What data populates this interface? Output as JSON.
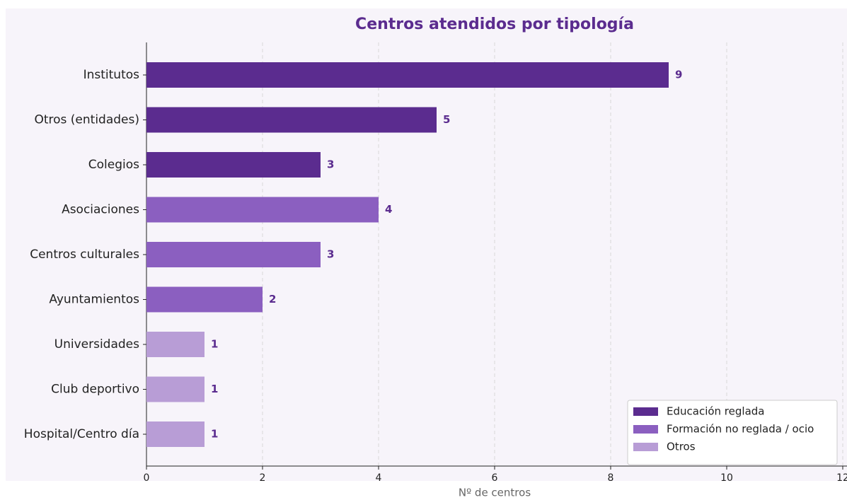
{
  "chart_data": {
    "type": "barh",
    "title": "Centros atendidos por tipología",
    "x_label": "Nº de centros",
    "categories": [
      "Institutos",
      "Otros (entidades)",
      "Colegios",
      "Asociaciones",
      "Centros culturales",
      "Ayuntamientos",
      "Universidades",
      "Club deportivo",
      "Hospital/Centro día"
    ],
    "series": [
      {
        "name": "Educación reglada",
        "color": "#5b2c8f",
        "values": [
          9,
          5,
          3,
          null,
          null,
          null,
          null,
          null,
          null
        ]
      },
      {
        "name": "Formación no reglada / ocio",
        "color": "#8b5fc0",
        "values": [
          null,
          null,
          null,
          4,
          3,
          2,
          null,
          null,
          null
        ]
      },
      {
        "name": "Otros",
        "color": "#b89dd6",
        "values": [
          null,
          null,
          null,
          null,
          null,
          null,
          1,
          1,
          1
        ]
      }
    ],
    "xlim": [
      0,
      12
    ],
    "xticks": [
      0,
      2,
      4,
      6,
      8,
      10,
      12
    ],
    "grid": true,
    "legend": "lower right"
  }
}
